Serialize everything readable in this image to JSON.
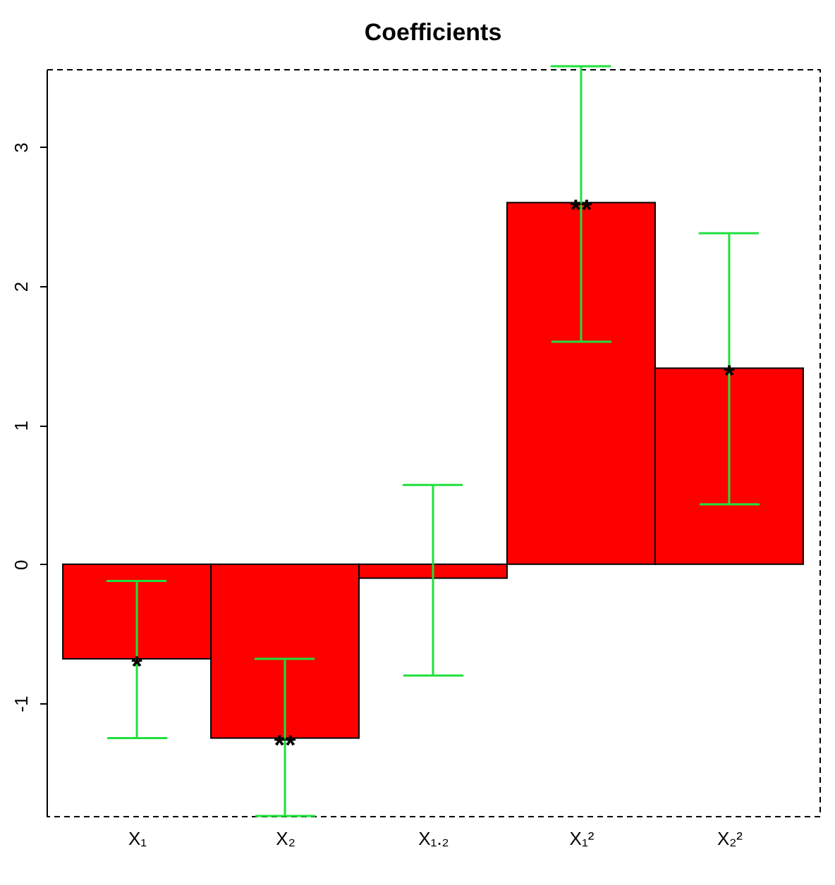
{
  "chart_data": {
    "type": "bar",
    "title": "Coefficients",
    "categories": [
      "X₁",
      "X₂",
      "X₁.₂",
      "X₁²",
      "X₂²"
    ],
    "series": [
      {
        "color": "#ff0000",
        "values": [
          -0.68,
          -1.25,
          -0.1,
          2.6,
          1.41
        ],
        "errors": [
          [
            -1.25,
            -0.12
          ],
          [
            -1.81,
            -0.68
          ],
          [
            -0.8,
            0.57
          ],
          [
            1.6,
            3.58
          ],
          [
            0.43,
            2.38
          ]
        ]
      }
    ],
    "ylim": [
      -1.81,
      3.56
    ],
    "yticks": [
      -1,
      0,
      1,
      2,
      3
    ],
    "grid": false,
    "annotations": [
      {
        "text": "*",
        "x": "X₁",
        "y": -0.68
      },
      {
        "text": "**",
        "x": "X₂",
        "y": -1.25
      },
      {
        "text": "**",
        "x": "X₁²",
        "y": 2.6
      },
      {
        "text": "*",
        "x": "X₂²",
        "y": 1.41
      }
    ]
  }
}
